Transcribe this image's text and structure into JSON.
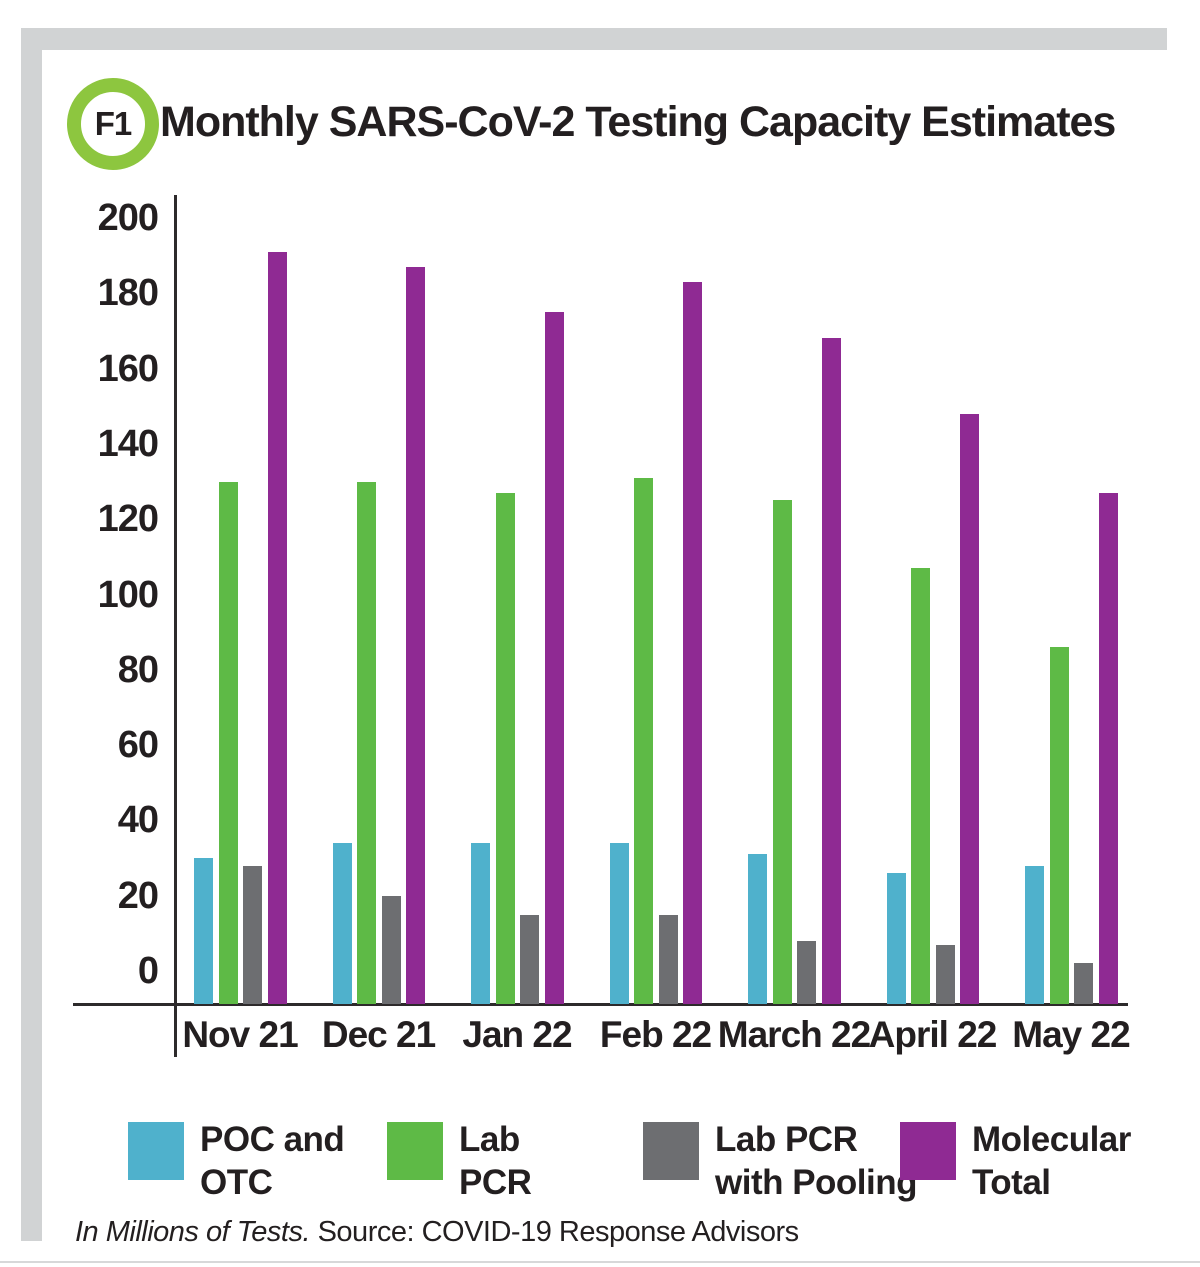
{
  "figure": {
    "badge_label": "F1",
    "title": "Monthly SARS-CoV-2 Testing Capacity Estimates",
    "footnote_unit": "In Millions of Tests.",
    "footnote_source": " Source: COVID-19 Response Advisors"
  },
  "colors": {
    "badge_ring": "#8dc63f",
    "frame_gray": "#d1d3d4",
    "text": "#231f20",
    "axis_line": "#2d2a2b",
    "poc_otc_teal": "#4fb1cc",
    "lab_pcr_green": "#5eba46",
    "pooling_gray": "#6d6e71",
    "molecular_purple": "#8f2a93"
  },
  "chart_data": {
    "type": "bar",
    "title": "Monthly SARS-CoV-2 Testing Capacity Estimates",
    "unit": "Millions of Tests",
    "categories": [
      "Nov 21",
      "Dec 21",
      "Jan 22",
      "Feb 22",
      "March 22",
      "April 22",
      "May 22"
    ],
    "series": [
      {
        "name": "POC and OTC",
        "color": "#4fb1cc",
        "values": [
          30,
          34,
          34,
          34,
          31,
          26,
          28
        ]
      },
      {
        "name": "Lab PCR",
        "color": "#5eba46",
        "values": [
          130,
          130,
          127,
          131,
          125,
          107,
          86
        ]
      },
      {
        "name": "Lab PCR with Pooling",
        "color": "#6d6e71",
        "values": [
          28,
          20,
          15,
          15,
          8,
          7,
          2
        ]
      },
      {
        "name": "Molecular Total",
        "color": "#8f2a93",
        "values": [
          191,
          187,
          175,
          183,
          168,
          148,
          127
        ]
      }
    ],
    "y_ticks": [
      200,
      180,
      160,
      140,
      120,
      100,
      80,
      60,
      40,
      20,
      0
    ],
    "ylim": [
      0,
      200
    ],
    "grid": false,
    "legend_position": "bottom"
  },
  "legend": {
    "items": [
      {
        "line1": "POC and",
        "line2": "OTC",
        "color": "#4fb1cc"
      },
      {
        "line1": "Lab",
        "line2": "PCR",
        "color": "#5eba46"
      },
      {
        "line1": "Lab PCR",
        "line2": "with Pooling",
        "color": "#6d6e71"
      },
      {
        "line1": "Molecular",
        "line2": "Total",
        "color": "#8f2a93"
      }
    ]
  }
}
